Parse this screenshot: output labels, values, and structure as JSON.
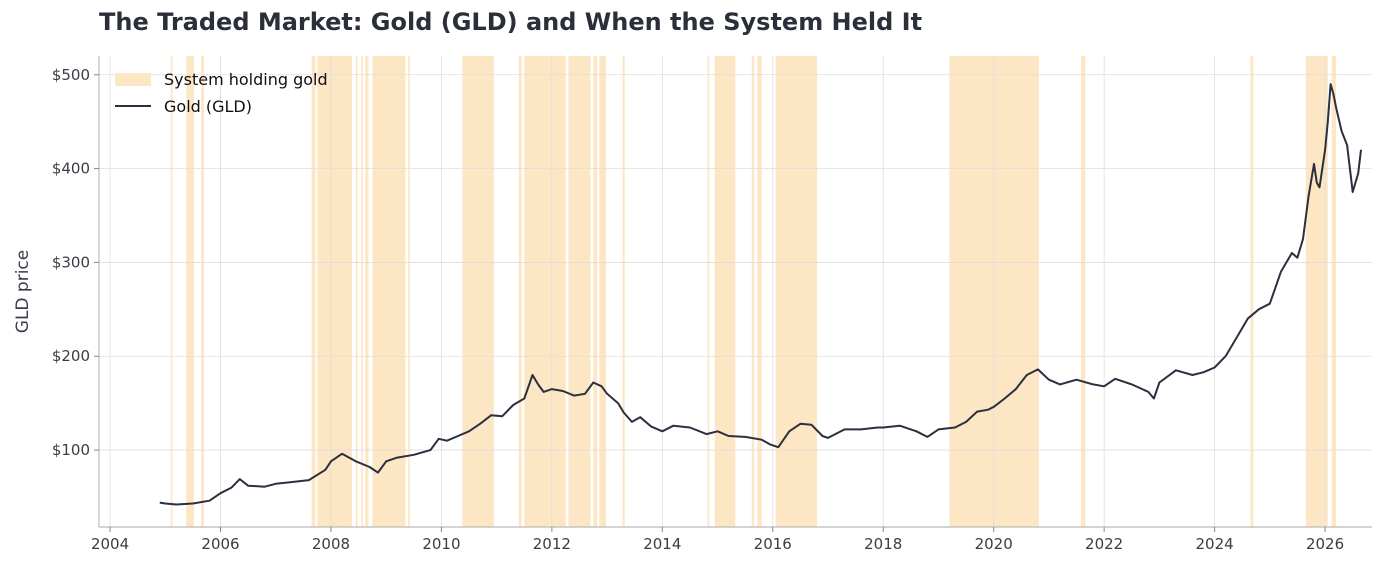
{
  "chart_data": {
    "type": "line",
    "title": "The Traded Market: Gold (GLD) and When the System Held It",
    "xlabel": "",
    "ylabel": "GLD price",
    "xlim": [
      2003.8,
      2026.85
    ],
    "ylim": [
      18,
      520
    ],
    "x_ticks": [
      2004,
      2006,
      2008,
      2010,
      2012,
      2014,
      2016,
      2018,
      2020,
      2022,
      2024,
      2026
    ],
    "y_ticks": [
      100,
      200,
      300,
      400,
      500
    ],
    "y_tick_labels": [
      "$100",
      "$200",
      "$300",
      "$400",
      "$500"
    ],
    "grid": true,
    "legend_position": "top-left",
    "legend": [
      "System holding gold",
      "Gold (GLD)"
    ],
    "colors": {
      "line": "#2b2f3e",
      "holding": "#fde6c4",
      "grid": "#dedede",
      "axis": "#bbbbbb"
    },
    "series": [
      {
        "name": "Gold (GLD)",
        "x": [
          2004.9,
          2005.0,
          2005.2,
          2005.5,
          2005.8,
          2006.0,
          2006.2,
          2006.35,
          2006.5,
          2006.8,
          2007.0,
          2007.3,
          2007.6,
          2007.9,
          2008.0,
          2008.2,
          2008.45,
          2008.7,
          2008.85,
          2009.0,
          2009.2,
          2009.5,
          2009.8,
          2009.95,
          2010.1,
          2010.3,
          2010.5,
          2010.7,
          2010.9,
          2011.1,
          2011.3,
          2011.5,
          2011.65,
          2011.75,
          2011.85,
          2012.0,
          2012.2,
          2012.4,
          2012.6,
          2012.75,
          2012.9,
          2013.0,
          2013.2,
          2013.3,
          2013.45,
          2013.6,
          2013.8,
          2014.0,
          2014.2,
          2014.5,
          2014.8,
          2015.0,
          2015.2,
          2015.5,
          2015.8,
          2015.95,
          2016.1,
          2016.3,
          2016.5,
          2016.7,
          2016.9,
          2017.0,
          2017.3,
          2017.6,
          2017.9,
          2018.0,
          2018.3,
          2018.6,
          2018.8,
          2019.0,
          2019.3,
          2019.5,
          2019.7,
          2019.9,
          2020.0,
          2020.2,
          2020.4,
          2020.6,
          2020.8,
          2021.0,
          2021.2,
          2021.5,
          2021.8,
          2022.0,
          2022.2,
          2022.5,
          2022.8,
          2022.9,
          2023.0,
          2023.3,
          2023.6,
          2023.8,
          2024.0,
          2024.2,
          2024.4,
          2024.6,
          2024.8,
          2025.0,
          2025.2,
          2025.4,
          2025.5,
          2025.6,
          2025.7,
          2025.8,
          2025.85,
          2025.9,
          2026.0,
          2026.05,
          2026.1,
          2026.15,
          2026.2,
          2026.3,
          2026.4,
          2026.5,
          2026.6,
          2026.65
        ],
        "values": [
          44,
          43,
          42,
          43,
          46,
          54,
          60,
          69,
          62,
          61,
          64,
          66,
          68,
          79,
          88,
          96,
          88,
          82,
          76,
          88,
          92,
          95,
          100,
          112,
          110,
          115,
          120,
          128,
          137,
          136,
          148,
          155,
          180,
          170,
          162,
          165,
          163,
          158,
          160,
          172,
          168,
          160,
          150,
          140,
          130,
          135,
          125,
          120,
          126,
          124,
          117,
          120,
          115,
          114,
          111,
          106,
          103,
          120,
          128,
          127,
          115,
          113,
          122,
          122,
          124,
          124,
          126,
          120,
          114,
          122,
          124,
          130,
          141,
          143,
          146,
          155,
          165,
          180,
          186,
          175,
          170,
          175,
          170,
          168,
          176,
          170,
          162,
          155,
          172,
          185,
          180,
          183,
          188,
          200,
          220,
          240,
          250,
          256,
          290,
          310,
          305,
          325,
          370,
          405,
          385,
          380,
          420,
          450,
          490,
          480,
          465,
          440,
          425,
          375,
          395,
          420
        ]
      }
    ],
    "holding_periods": [
      [
        2005.1,
        2005.13
      ],
      [
        2005.38,
        2005.52
      ],
      [
        2005.65,
        2005.7
      ],
      [
        2007.65,
        2007.72
      ],
      [
        2007.75,
        2008.38
      ],
      [
        2008.45,
        2008.48
      ],
      [
        2008.55,
        2008.58
      ],
      [
        2008.62,
        2008.68
      ],
      [
        2008.75,
        2009.35
      ],
      [
        2009.4,
        2009.43
      ],
      [
        2010.38,
        2010.95
      ],
      [
        2011.4,
        2011.45
      ],
      [
        2011.5,
        2012.25
      ],
      [
        2012.3,
        2012.7
      ],
      [
        2012.75,
        2012.82
      ],
      [
        2012.86,
        2012.98
      ],
      [
        2013.28,
        2013.32
      ],
      [
        2014.82,
        2014.85
      ],
      [
        2014.95,
        2015.32
      ],
      [
        2015.62,
        2015.66
      ],
      [
        2015.72,
        2015.8
      ],
      [
        2016.05,
        2016.8
      ],
      [
        2019.2,
        2020.82
      ],
      [
        2021.58,
        2021.66
      ],
      [
        2024.65,
        2024.7
      ],
      [
        2025.65,
        2026.05
      ],
      [
        2026.12,
        2026.2
      ]
    ]
  }
}
